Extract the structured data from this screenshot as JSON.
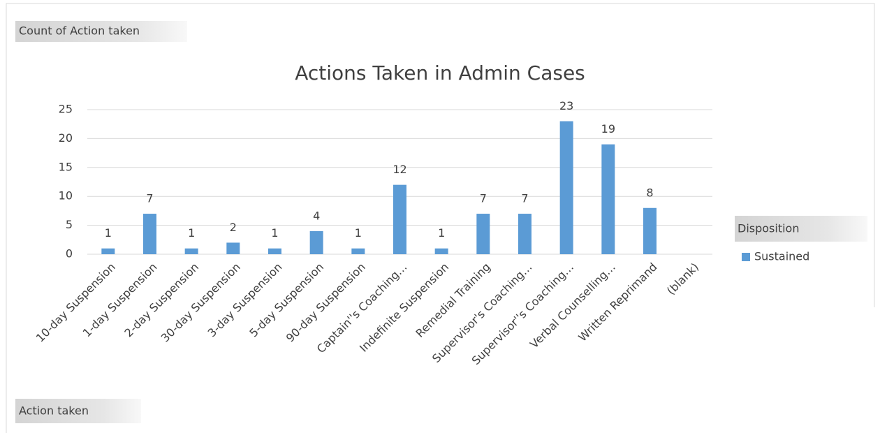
{
  "chart_data": {
    "type": "bar",
    "title": "Actions Taken in Admin Cases",
    "fields": {
      "values": "Count of Action taken",
      "axis": "Action taken",
      "legend": "Disposition"
    },
    "categories": [
      "10-day Suspension",
      "1-day Suspension",
      "2-day Suspension",
      "30-day Suspension",
      "3-day Suspension",
      "5-day Suspension",
      "90-day Suspension",
      "Captain''s Coaching…",
      "Indefinite Suspension",
      "Remedial Training",
      "Supervisor's Coaching…",
      "Supervisor''s Coaching…",
      "Verbal Counselling…",
      "Written Reprimand",
      "(blank)"
    ],
    "series": [
      {
        "name": "Sustained",
        "color": "#5b9bd5",
        "values": [
          1,
          7,
          1,
          2,
          1,
          4,
          1,
          12,
          1,
          7,
          7,
          23,
          19,
          8,
          null
        ]
      }
    ],
    "ylim": [
      0,
      25
    ],
    "yticks": [
      0,
      5,
      10,
      15,
      20,
      25
    ],
    "grid": true,
    "legend": "right"
  }
}
